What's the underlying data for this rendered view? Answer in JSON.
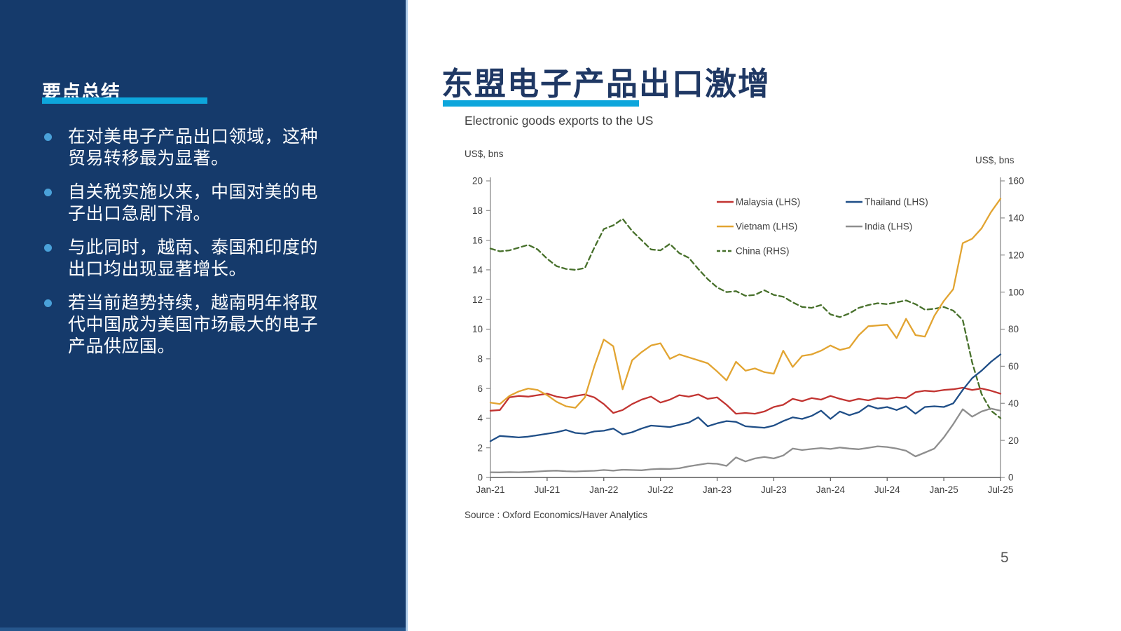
{
  "slide": {
    "page_number": "5"
  },
  "sidebar": {
    "title": "要点总结",
    "bullets": [
      "在对美电子产品出口领域，这种贸易转移最为显著。",
      "自关税实施以来，中国对美的电子出口急剧下滑。",
      "与此同时，越南、泰国和印度的出口均出现显著增长。",
      "若当前趋势持续，越南明年将取代中国成为美国市场最大的电子产品供应国。"
    ]
  },
  "main": {
    "title": "东盟电子产品出口激增",
    "chart_title": "Electronic goods exports to the US",
    "y_left_unit": "US$, bns",
    "y_right_unit": "US$, bns",
    "source": "Source : Oxford Economics/Haver Analytics"
  },
  "colors": {
    "sidebar_bg": "#153A6B",
    "accent_cyan": "#0DA6DC",
    "title_navy": "#1F3864",
    "text_gray": "#404040",
    "axis_gray": "#8C8C8C",
    "axis_dark": "#595959",
    "malaysia_red": "#C23431",
    "thailand_blue": "#1F4E87",
    "vietnam_gold": "#E2A431",
    "india_gray": "#8E8E8E",
    "china_green": "#47702B"
  },
  "chart_data": {
    "type": "line",
    "title": "Electronic goods exports to the US",
    "x_unit": "month",
    "x_range": [
      "Jan-21",
      "Jul-25"
    ],
    "months_total": 55,
    "x_tick_labels": [
      "Jan-21",
      "Jul-21",
      "Jan-22",
      "Jul-22",
      "Jan-23",
      "Jul-23",
      "Jan-24",
      "Jul-24",
      "Jan-25",
      "Jul-25"
    ],
    "x_tick_month_index": [
      0,
      6,
      12,
      18,
      24,
      30,
      36,
      42,
      48,
      54
    ],
    "y_left": {
      "label": "US$, bns",
      "min": 0,
      "max": 20,
      "tick_step": 2
    },
    "y_right": {
      "label": "US$, bns",
      "min": 0,
      "max": 160,
      "tick_step": 20
    },
    "grid": false,
    "legend_position": "top-right-inside",
    "series": [
      {
        "name": "Malaysia",
        "label": "Malaysia (LHS)",
        "axis": "left",
        "color": "#C23431",
        "dash": false,
        "values": [
          4.5,
          4.55,
          5.4,
          5.5,
          5.45,
          5.55,
          5.65,
          5.45,
          5.35,
          5.5,
          5.6,
          5.4,
          4.95,
          4.35,
          4.55,
          4.95,
          5.25,
          5.45,
          5.05,
          5.25,
          5.55,
          5.45,
          5.6,
          5.3,
          5.4,
          4.9,
          4.3,
          4.35,
          4.3,
          4.45,
          4.75,
          4.9,
          5.3,
          5.15,
          5.35,
          5.25,
          5.5,
          5.3,
          5.15,
          5.3,
          5.2,
          5.35,
          5.3,
          5.4,
          5.35,
          5.75,
          5.85,
          5.8,
          5.9,
          5.95,
          6.05,
          5.9,
          6.0,
          5.85,
          5.65
        ]
      },
      {
        "name": "Thailand",
        "label": "Thailand (LHS)",
        "axis": "left",
        "color": "#1F4E87",
        "dash": false,
        "values": [
          2.45,
          2.8,
          2.75,
          2.7,
          2.75,
          2.85,
          2.95,
          3.05,
          3.2,
          3.0,
          2.95,
          3.1,
          3.15,
          3.3,
          2.9,
          3.05,
          3.3,
          3.5,
          3.45,
          3.4,
          3.55,
          3.7,
          4.05,
          3.45,
          3.65,
          3.8,
          3.75,
          3.45,
          3.4,
          3.35,
          3.5,
          3.8,
          4.05,
          3.95,
          4.15,
          4.5,
          3.95,
          4.45,
          4.2,
          4.4,
          4.85,
          4.65,
          4.75,
          4.55,
          4.8,
          4.3,
          4.75,
          4.8,
          4.75,
          5.0,
          5.9,
          6.7,
          7.2,
          7.8,
          8.3
        ]
      },
      {
        "name": "Vietnam",
        "label": "Vietnam (LHS)",
        "axis": "left",
        "color": "#E2A431",
        "dash": false,
        "values": [
          5.05,
          4.95,
          5.5,
          5.8,
          6.0,
          5.9,
          5.55,
          5.1,
          4.8,
          4.7,
          5.4,
          7.5,
          9.3,
          8.85,
          5.95,
          7.9,
          8.45,
          8.9,
          9.05,
          8.0,
          8.3,
          8.1,
          7.9,
          7.7,
          7.15,
          6.55,
          7.8,
          7.2,
          7.35,
          7.1,
          7.0,
          8.55,
          7.45,
          8.2,
          8.3,
          8.55,
          8.9,
          8.6,
          8.75,
          9.6,
          10.2,
          10.25,
          10.3,
          9.4,
          10.7,
          9.6,
          9.5,
          10.9,
          11.9,
          12.7,
          15.8,
          16.1,
          16.8,
          17.9,
          18.8
        ]
      },
      {
        "name": "India",
        "label": "India (LHS)",
        "axis": "left",
        "color": "#8E8E8E",
        "dash": false,
        "values": [
          0.35,
          0.34,
          0.36,
          0.35,
          0.37,
          0.4,
          0.44,
          0.46,
          0.42,
          0.4,
          0.43,
          0.45,
          0.5,
          0.46,
          0.52,
          0.5,
          0.48,
          0.55,
          0.58,
          0.57,
          0.62,
          0.75,
          0.85,
          0.95,
          0.92,
          0.78,
          1.35,
          1.08,
          1.28,
          1.38,
          1.28,
          1.48,
          1.95,
          1.85,
          1.92,
          1.98,
          1.92,
          2.02,
          1.95,
          1.9,
          2.0,
          2.1,
          2.05,
          1.95,
          1.8,
          1.42,
          1.68,
          1.95,
          2.7,
          3.6,
          4.6,
          4.1,
          4.45,
          4.65,
          4.5
        ]
      },
      {
        "name": "China",
        "label": "China (RHS)",
        "axis": "right",
        "color": "#47702B",
        "dash": true,
        "values": [
          123.5,
          122,
          122.5,
          124,
          125.5,
          123,
          118,
          114,
          112.5,
          112,
          113,
          124,
          134,
          136,
          139.5,
          133,
          128,
          123,
          122.5,
          126,
          121,
          118.5,
          112.5,
          107,
          102.5,
          100,
          100.5,
          98,
          98.5,
          101,
          98.5,
          97.5,
          94.5,
          92,
          91.5,
          93,
          88,
          86.5,
          88.5,
          91.5,
          93,
          94,
          93.5,
          94.5,
          95.5,
          93.5,
          90.5,
          91,
          92,
          90,
          85,
          62,
          45,
          36,
          32
        ]
      }
    ]
  }
}
